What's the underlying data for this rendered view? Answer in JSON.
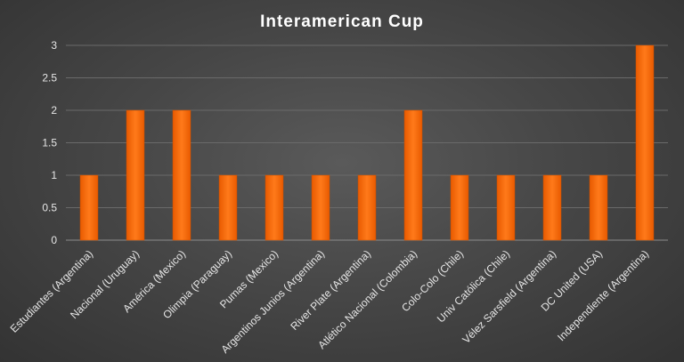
{
  "chart_data": {
    "type": "bar",
    "title": "Interamerican Cup",
    "xlabel": "",
    "ylabel": "",
    "categories": [
      "Estudiantes (Argentina)",
      "Nacional (Uruguay)",
      "América (Mexico)",
      "Olimpia (Paraguay)",
      "Pumas (Mexico)",
      "Argentinos Junios (Argentina)",
      "River Plate (Argentina)",
      "Atlético Nacional (Colombia)",
      "Colo-Colo (Chile)",
      "Univ Católica (Chile)",
      "Vélez Sarsfield (Argentina)",
      "DC United (USA)",
      "Independiente (Argentina)"
    ],
    "values": [
      1,
      2,
      2,
      1,
      1,
      1,
      1,
      2,
      1,
      1,
      1,
      1,
      3
    ],
    "ylim": [
      0,
      3
    ],
    "yticks": [
      "0",
      "0.5",
      "1",
      "1.5",
      "2",
      "2.5",
      "3"
    ],
    "grid": true,
    "bar_color": "#ff6a00"
  }
}
